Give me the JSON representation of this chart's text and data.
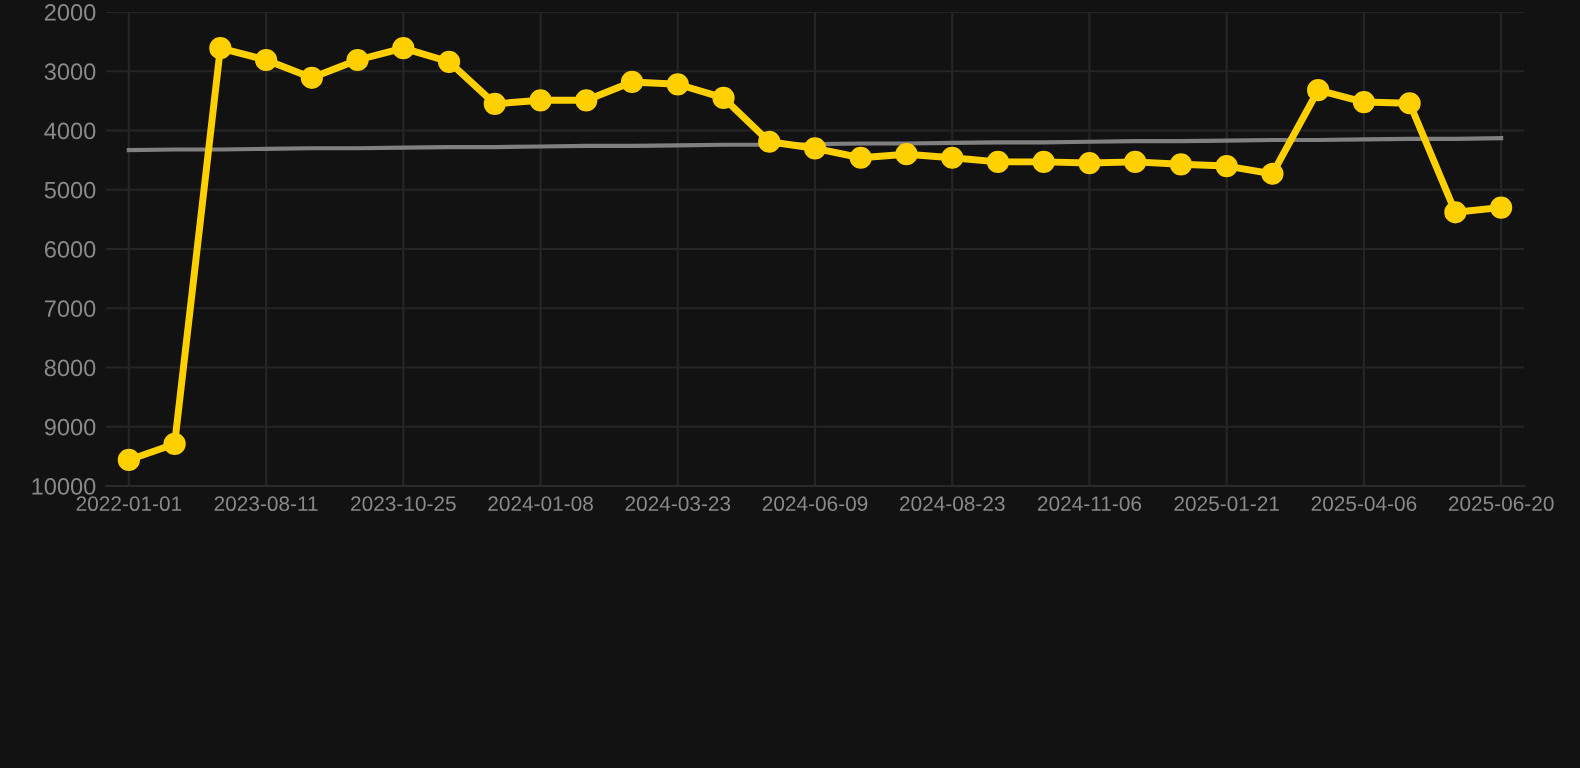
{
  "chart_data": {
    "type": "line",
    "categories": [
      "2022-01-01",
      null,
      null,
      "2023-08-11",
      null,
      null,
      "2023-10-25",
      null,
      null,
      "2024-01-08",
      null,
      null,
      "2024-03-23",
      null,
      null,
      "2024-06-09",
      null,
      null,
      "2024-08-23",
      null,
      null,
      "2024-11-06",
      null,
      null,
      "2025-01-21",
      null,
      null,
      "2025-04-06",
      null,
      null,
      "2025-06-20"
    ],
    "series": [
      {
        "color": "#ffd000",
        "marker": "circle",
        "values": [
          9560,
          9290,
          2610,
          2810,
          3110,
          2810,
          2610,
          2840,
          3550,
          3490,
          3490,
          3180,
          3220,
          3450,
          4190,
          4300,
          4460,
          4400,
          4460,
          4530,
          4530,
          4550,
          4530,
          4570,
          4600,
          4730,
          3320,
          3520,
          3540,
          5380,
          5300
        ]
      },
      {
        "color": "#808080",
        "marker": "none",
        "values": [
          4330,
          4320,
          4320,
          4310,
          4300,
          4300,
          4290,
          4280,
          4280,
          4270,
          4260,
          4260,
          4250,
          4240,
          4240,
          4230,
          4220,
          4220,
          4210,
          4200,
          4200,
          4190,
          4180,
          4180,
          4170,
          4160,
          4160,
          4150,
          4140,
          4140,
          4130
        ]
      }
    ],
    "ylim": [
      10000,
      2000
    ],
    "yticks": [
      2000,
      3000,
      4000,
      5000,
      6000,
      7000,
      8000,
      9000,
      10000
    ],
    "grid": true,
    "line_style": "solid"
  }
}
